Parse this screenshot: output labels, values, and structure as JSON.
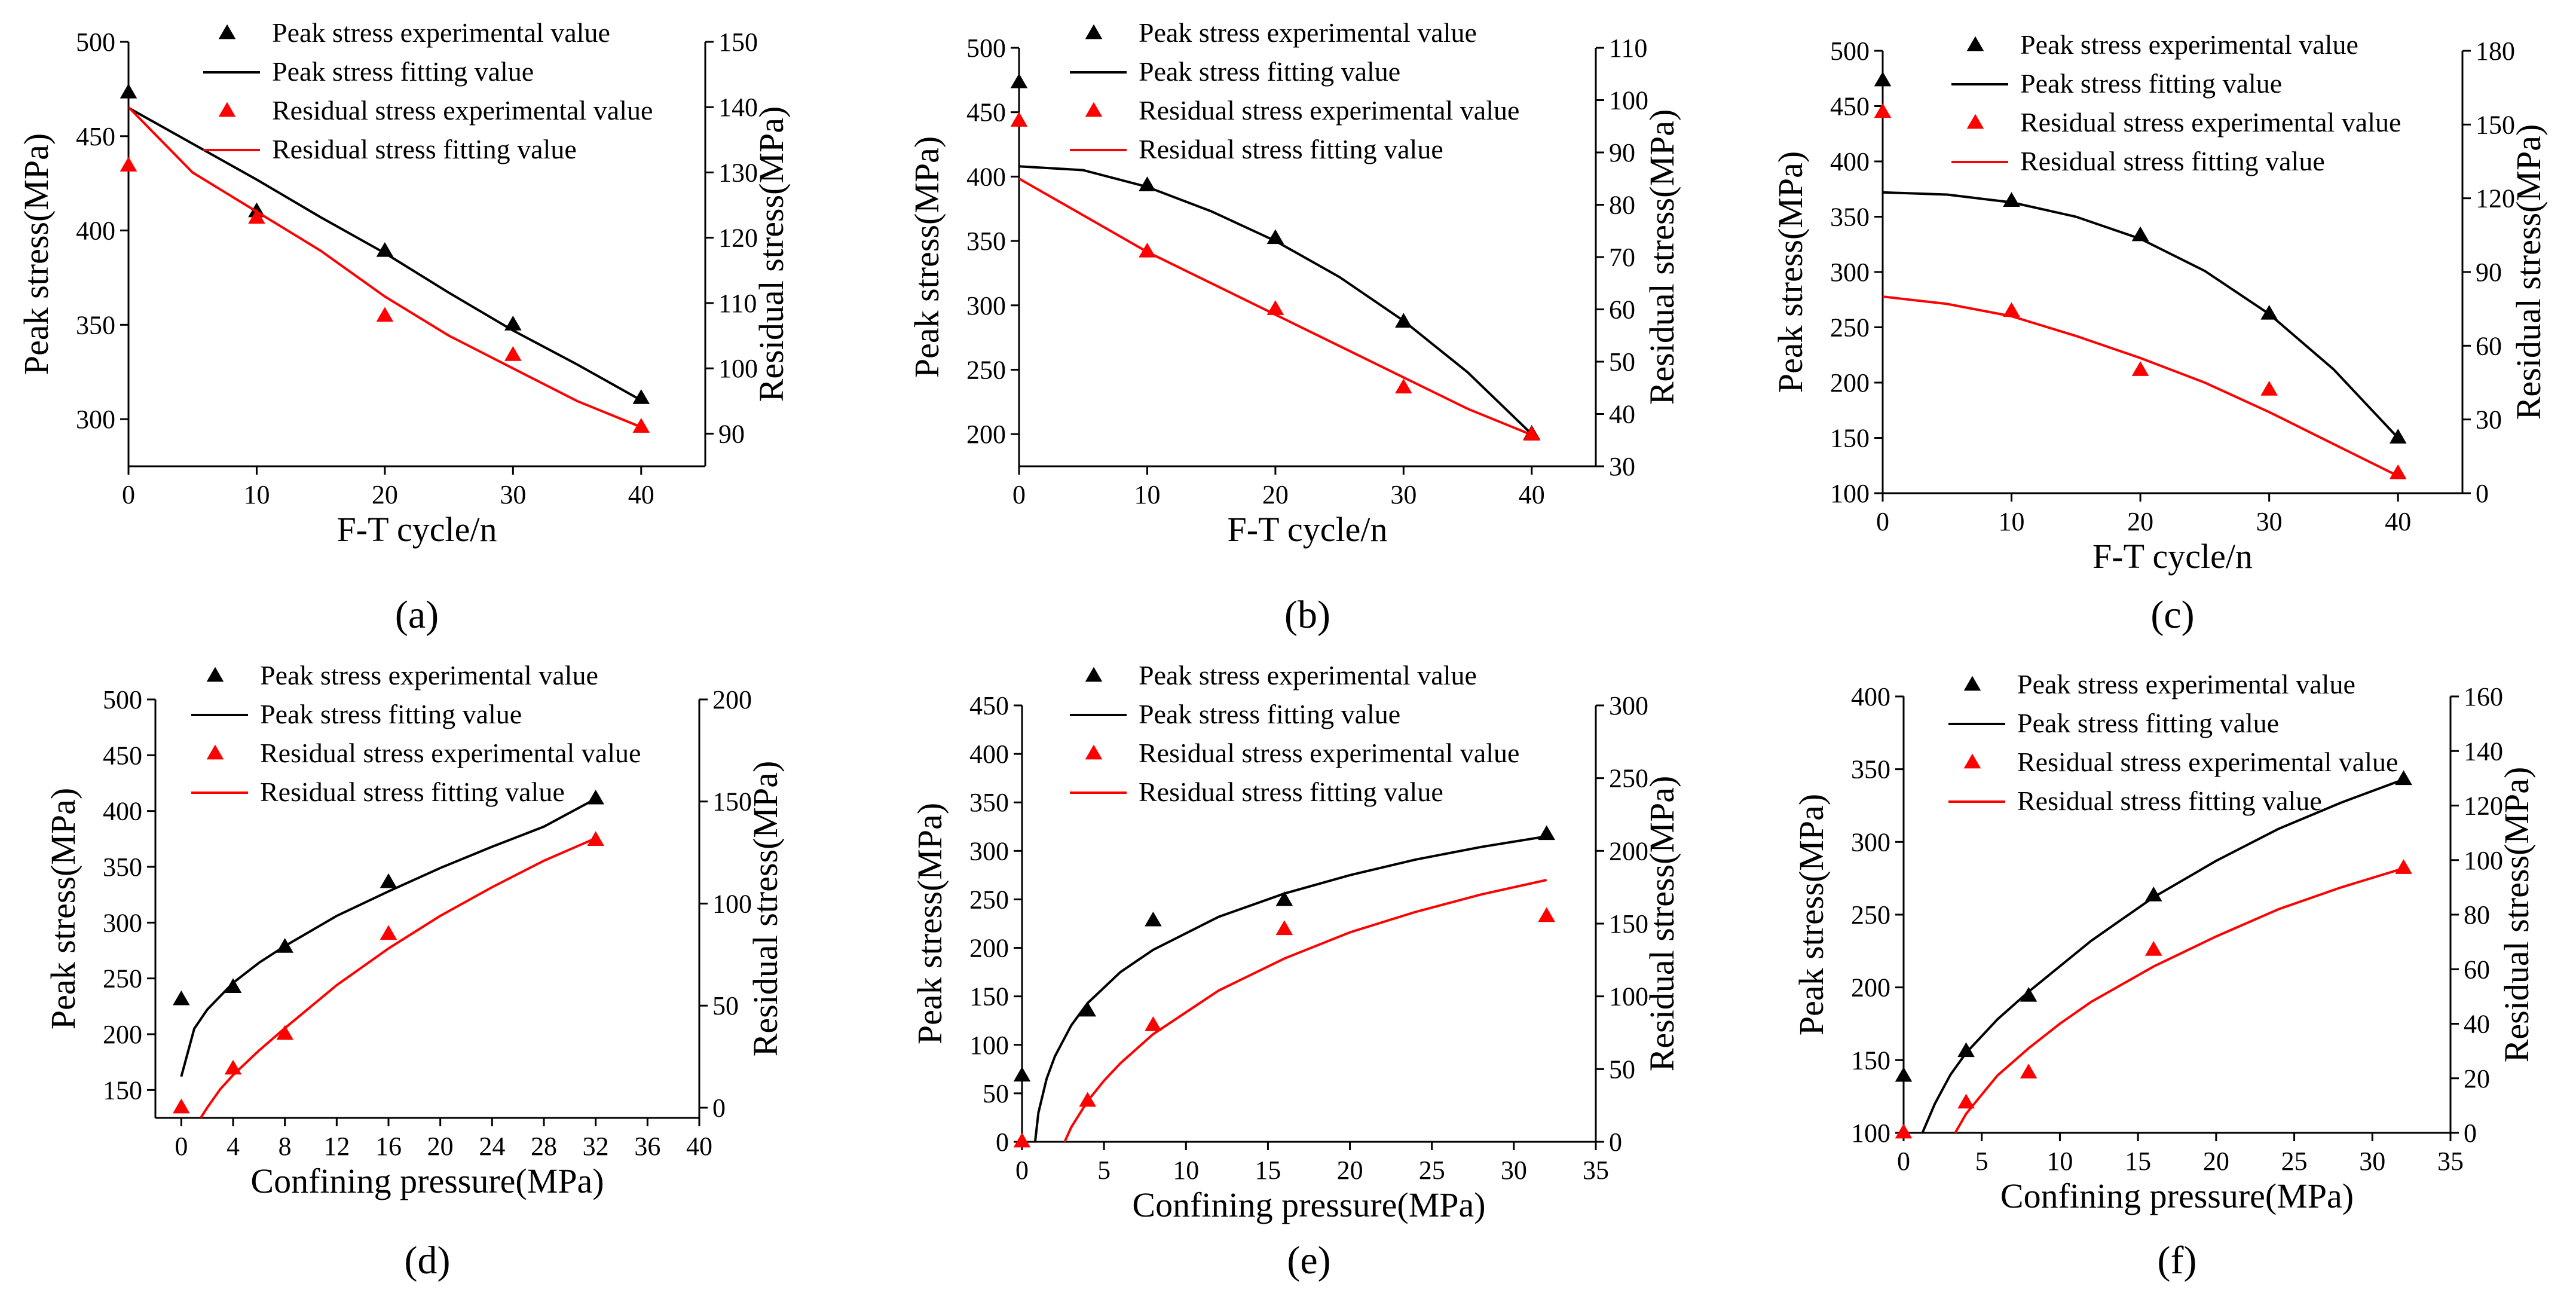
{
  "figure": {
    "panel_labels": [
      "(a)",
      "(b)",
      "(c)",
      "(d)",
      "(e)",
      "(f)"
    ],
    "colors": {
      "peak": "#000000",
      "residual": "#ff0000",
      "axis": "#000000",
      "background": "#ffffff"
    }
  },
  "chart_data": [
    {
      "id": "a",
      "type": "line+scatter",
      "panel_label": "(a)",
      "xlabel": "F-T cycle/n",
      "ylabel_left": "Peak stress(MPa)",
      "ylabel_right": "Residual stress(MPa)",
      "xlim": [
        0,
        45
      ],
      "xticks": [
        0,
        10,
        20,
        30,
        40
      ],
      "ylim_left": [
        275,
        500
      ],
      "yticks_left": [
        300,
        350,
        400,
        450,
        500
      ],
      "ylim_right": [
        85,
        150
      ],
      "yticks_right": [
        90,
        100,
        110,
        120,
        130,
        140,
        150
      ],
      "legend": [
        "Peak stress experimental value",
        "Peak stress fitting value",
        "Residual stress experimental value",
        "Residual stress fitting value"
      ],
      "series": [
        {
          "name": "Peak stress experimental value",
          "axis": "left",
          "kind": "scatter",
          "color": "#000000",
          "x": [
            0,
            10,
            20,
            30,
            40
          ],
          "y": [
            473,
            410,
            389,
            350,
            311
          ]
        },
        {
          "name": "Peak stress fitting value",
          "axis": "left",
          "kind": "line",
          "color": "#000000",
          "x": [
            0,
            5,
            10,
            15,
            20,
            25,
            30,
            35,
            40
          ],
          "y": [
            465,
            446,
            427,
            407,
            388,
            367,
            347,
            329,
            310
          ]
        },
        {
          "name": "Residual stress experimental value",
          "axis": "right",
          "kind": "scatter",
          "color": "#ff0000",
          "x": [
            0,
            10,
            20,
            30,
            40
          ],
          "y": [
            131,
            123,
            108,
            102,
            91
          ]
        },
        {
          "name": "Residual stress fitting value",
          "axis": "right",
          "kind": "line",
          "color": "#ff0000",
          "x": [
            0,
            5,
            10,
            15,
            20,
            25,
            30,
            35,
            40
          ],
          "y": [
            140,
            130,
            124,
            118,
            111,
            105,
            100,
            95,
            91
          ]
        }
      ]
    },
    {
      "id": "b",
      "type": "line+scatter",
      "panel_label": "(b)",
      "xlabel": "F-T cycle/n",
      "ylabel_left": "Peak stress(MPa)",
      "ylabel_right": "Residual stress(MPa)",
      "xlim": [
        0,
        45
      ],
      "xticks": [
        0,
        10,
        20,
        30,
        40
      ],
      "ylim_left": [
        175,
        500
      ],
      "yticks_left": [
        200,
        250,
        300,
        350,
        400,
        450,
        500
      ],
      "ylim_right": [
        30,
        110
      ],
      "yticks_right": [
        30,
        40,
        50,
        60,
        70,
        80,
        90,
        100,
        110
      ],
      "legend": [
        "Peak stress experimental value",
        "Peak stress fitting value",
        "Residual stress experimental value",
        "Residual stress fitting value"
      ],
      "series": [
        {
          "name": "Peak stress experimental value",
          "axis": "left",
          "kind": "scatter",
          "color": "#000000",
          "x": [
            0,
            10,
            20,
            30,
            40
          ],
          "y": [
            473,
            393,
            352,
            287,
            200
          ]
        },
        {
          "name": "Peak stress fitting value",
          "axis": "left",
          "kind": "line",
          "color": "#000000",
          "x": [
            0,
            5,
            10,
            15,
            20,
            25,
            30,
            35,
            40
          ],
          "y": [
            408,
            405,
            392,
            373,
            350,
            322,
            288,
            248,
            200
          ]
        },
        {
          "name": "Residual stress experimental value",
          "axis": "right",
          "kind": "scatter",
          "color": "#ff0000",
          "x": [
            0,
            10,
            20,
            30,
            40
          ],
          "y": [
            96,
            71,
            60,
            45,
            36
          ]
        },
        {
          "name": "Residual stress fitting value",
          "axis": "right",
          "kind": "line",
          "color": "#ff0000",
          "x": [
            0,
            5,
            10,
            15,
            20,
            25,
            30,
            35,
            40
          ],
          "y": [
            85,
            78,
            71,
            65,
            59,
            53,
            47,
            41,
            36
          ]
        }
      ]
    },
    {
      "id": "c",
      "type": "line+scatter",
      "panel_label": "(c)",
      "xlabel": "F-T cycle/n",
      "ylabel_left": "Peak stress(MPa)",
      "ylabel_right": "Residual stress(MPa)",
      "xlim": [
        0,
        45
      ],
      "xticks": [
        0,
        10,
        20,
        30,
        40
      ],
      "ylim_left": [
        100,
        500
      ],
      "yticks_left": [
        100,
        150,
        200,
        250,
        300,
        350,
        400,
        450,
        500
      ],
      "ylim_right": [
        0,
        180
      ],
      "yticks_right": [
        0,
        30,
        60,
        90,
        120,
        150,
        180
      ],
      "legend": [
        "Peak stress experimental value",
        "Peak stress fitting value",
        "Residual stress experimental value",
        "Residual stress fitting value"
      ],
      "series": [
        {
          "name": "Peak stress experimental value",
          "axis": "left",
          "kind": "scatter",
          "color": "#000000",
          "x": [
            0,
            10,
            20,
            30,
            40
          ],
          "y": [
            473,
            364,
            333,
            262,
            150
          ]
        },
        {
          "name": "Peak stress fitting value",
          "axis": "left",
          "kind": "line",
          "color": "#000000",
          "x": [
            0,
            5,
            10,
            15,
            20,
            25,
            30,
            35,
            40
          ],
          "y": [
            372,
            370,
            363,
            350,
            330,
            301,
            262,
            212,
            150
          ]
        },
        {
          "name": "Residual stress experimental value",
          "axis": "right",
          "kind": "scatter",
          "color": "#ff0000",
          "x": [
            0,
            10,
            20,
            30,
            40
          ],
          "y": [
            155,
            74,
            50,
            42,
            8
          ]
        },
        {
          "name": "Residual stress fitting value",
          "axis": "right",
          "kind": "line",
          "color": "#ff0000",
          "x": [
            0,
            5,
            10,
            15,
            20,
            25,
            30,
            35,
            40
          ],
          "y": [
            80,
            77,
            72,
            64,
            55,
            45,
            33,
            20,
            7
          ]
        }
      ]
    },
    {
      "id": "d",
      "type": "line+scatter",
      "panel_label": "(d)",
      "xlabel": "Confining pressure(MPa)",
      "ylabel_left": "Peak stress(MPa)",
      "ylabel_right": "Residual stress(MPa)",
      "xlim": [
        -2,
        40
      ],
      "xticks": [
        0,
        4,
        8,
        12,
        16,
        20,
        24,
        28,
        32,
        36,
        40
      ],
      "ylim_left": [
        125,
        500
      ],
      "yticks_left": [
        150,
        200,
        250,
        300,
        350,
        400,
        450,
        500
      ],
      "ylim_right": [
        -5,
        200
      ],
      "yticks_right": [
        0,
        50,
        100,
        150,
        200
      ],
      "legend": [
        "Peak stress experimental value",
        "Peak stress fitting value",
        "Residual stress experimental value",
        "Residual stress fitting value"
      ],
      "series": [
        {
          "name": "Peak stress experimental value",
          "axis": "left",
          "kind": "scatter",
          "color": "#000000",
          "x": [
            0,
            4,
            8,
            16,
            32
          ],
          "y": [
            231,
            242,
            278,
            336,
            411
          ]
        },
        {
          "name": "Peak stress fitting value",
          "axis": "left",
          "kind": "line",
          "color": "#000000",
          "x": [
            0,
            1,
            2,
            4,
            6,
            8,
            12,
            16,
            20,
            24,
            28,
            32
          ],
          "y": [
            162,
            205,
            222,
            246,
            264,
            279,
            306,
            328,
            349,
            368,
            386,
            411
          ]
        },
        {
          "name": "Residual stress experimental value",
          "axis": "right",
          "kind": "scatter",
          "color": "#ff0000",
          "x": [
            0,
            4,
            8,
            16,
            32
          ],
          "y": [
            0,
            19,
            36,
            85,
            131
          ]
        },
        {
          "name": "Residual stress fitting value",
          "axis": "right",
          "kind": "line",
          "color": "#ff0000",
          "x": [
            1.5,
            2,
            3,
            4,
            6,
            8,
            12,
            16,
            20,
            24,
            28,
            32
          ],
          "y": [
            -5,
            0,
            9,
            16,
            28,
            39,
            60,
            78,
            94,
            108,
            121,
            132
          ]
        }
      ]
    },
    {
      "id": "e",
      "type": "line+scatter",
      "panel_label": "(e)",
      "xlabel": "Confining pressure(MPa)",
      "ylabel_left": "Peak stress(MPa)",
      "ylabel_right": "Residual stress(MPa)",
      "xlim": [
        0,
        35
      ],
      "xticks": [
        0,
        5,
        10,
        15,
        20,
        25,
        30,
        35
      ],
      "ylim_left": [
        0,
        450
      ],
      "yticks_left": [
        0,
        50,
        100,
        150,
        200,
        250,
        300,
        350,
        400,
        450
      ],
      "ylim_right": [
        0,
        300
      ],
      "yticks_right": [
        0,
        50,
        100,
        150,
        200,
        250,
        300
      ],
      "legend": [
        "Peak stress experimental value",
        "Peak stress fitting value",
        "Residual stress experimental value",
        "Residual stress fitting value"
      ],
      "series": [
        {
          "name": "Peak stress experimental value",
          "axis": "left",
          "kind": "scatter",
          "color": "#000000",
          "x": [
            0,
            4,
            8,
            16,
            32
          ],
          "y": [
            68,
            135,
            228,
            249,
            317
          ]
        },
        {
          "name": "Peak stress fitting value",
          "axis": "left",
          "kind": "line",
          "color": "#000000",
          "x": [
            0.8,
            1,
            1.5,
            2,
            3,
            4,
            6,
            8,
            12,
            16,
            20,
            24,
            28,
            32
          ],
          "y": [
            0,
            30,
            65,
            88,
            120,
            143,
            175,
            198,
            232,
            256,
            275,
            291,
            304,
            315
          ]
        },
        {
          "name": "Residual stress experimental value",
          "axis": "right",
          "kind": "scatter",
          "color": "#ff0000",
          "x": [
            0,
            4,
            8,
            16,
            32
          ],
          "y": [
            0,
            28,
            80,
            146,
            155
          ]
        },
        {
          "name": "Residual stress fitting value",
          "axis": "right",
          "kind": "line",
          "color": "#ff0000",
          "x": [
            2.6,
            3,
            4,
            5,
            6,
            8,
            12,
            16,
            20,
            24,
            28,
            32
          ],
          "y": [
            0,
            10,
            28,
            42,
            54,
            74,
            104,
            126,
            144,
            158,
            170,
            180
          ]
        }
      ]
    },
    {
      "id": "f",
      "type": "line+scatter",
      "panel_label": "(f)",
      "xlabel": "Confining pressure(MPa)",
      "ylabel_left": "Peak stress(MPa)",
      "ylabel_right": "Residual stress(MPa)",
      "xlim": [
        0,
        35
      ],
      "xticks": [
        0,
        5,
        10,
        15,
        20,
        25,
        30,
        35
      ],
      "ylim_left": [
        100,
        400
      ],
      "yticks_left": [
        100,
        150,
        200,
        250,
        300,
        350,
        400
      ],
      "ylim_right": [
        0,
        160
      ],
      "yticks_right": [
        0,
        20,
        40,
        60,
        80,
        100,
        120,
        140,
        160
      ],
      "legend": [
        "Peak stress experimental value",
        "Peak stress fitting value",
        "Residual stress experimental value",
        "Residual stress fitting value"
      ],
      "series": [
        {
          "name": "Peak stress experimental value",
          "axis": "left",
          "kind": "scatter",
          "color": "#000000",
          "x": [
            0,
            4,
            8,
            16,
            32
          ],
          "y": [
            139,
            156,
            194,
            263,
            343
          ]
        },
        {
          "name": "Peak stress fitting value",
          "axis": "left",
          "kind": "line",
          "color": "#000000",
          "x": [
            1.2,
            2,
            3,
            4,
            6,
            8,
            12,
            16,
            20,
            24,
            28,
            32
          ],
          "y": [
            100,
            120,
            140,
            155,
            178,
            197,
            232,
            262,
            287,
            309,
            327,
            343
          ]
        },
        {
          "name": "Residual stress experimental value",
          "axis": "right",
          "kind": "scatter",
          "color": "#ff0000",
          "x": [
            0,
            4,
            8,
            16,
            32
          ],
          "y": [
            0,
            11,
            22,
            67,
            97
          ]
        },
        {
          "name": "Residual stress fitting value",
          "axis": "right",
          "kind": "line",
          "color": "#ff0000",
          "x": [
            3.3,
            4,
            5,
            6,
            8,
            10,
            12,
            16,
            20,
            24,
            28,
            32
          ],
          "y": [
            0,
            7,
            14,
            21,
            31,
            40,
            48,
            61,
            72,
            82,
            90,
            97
          ]
        }
      ]
    }
  ]
}
